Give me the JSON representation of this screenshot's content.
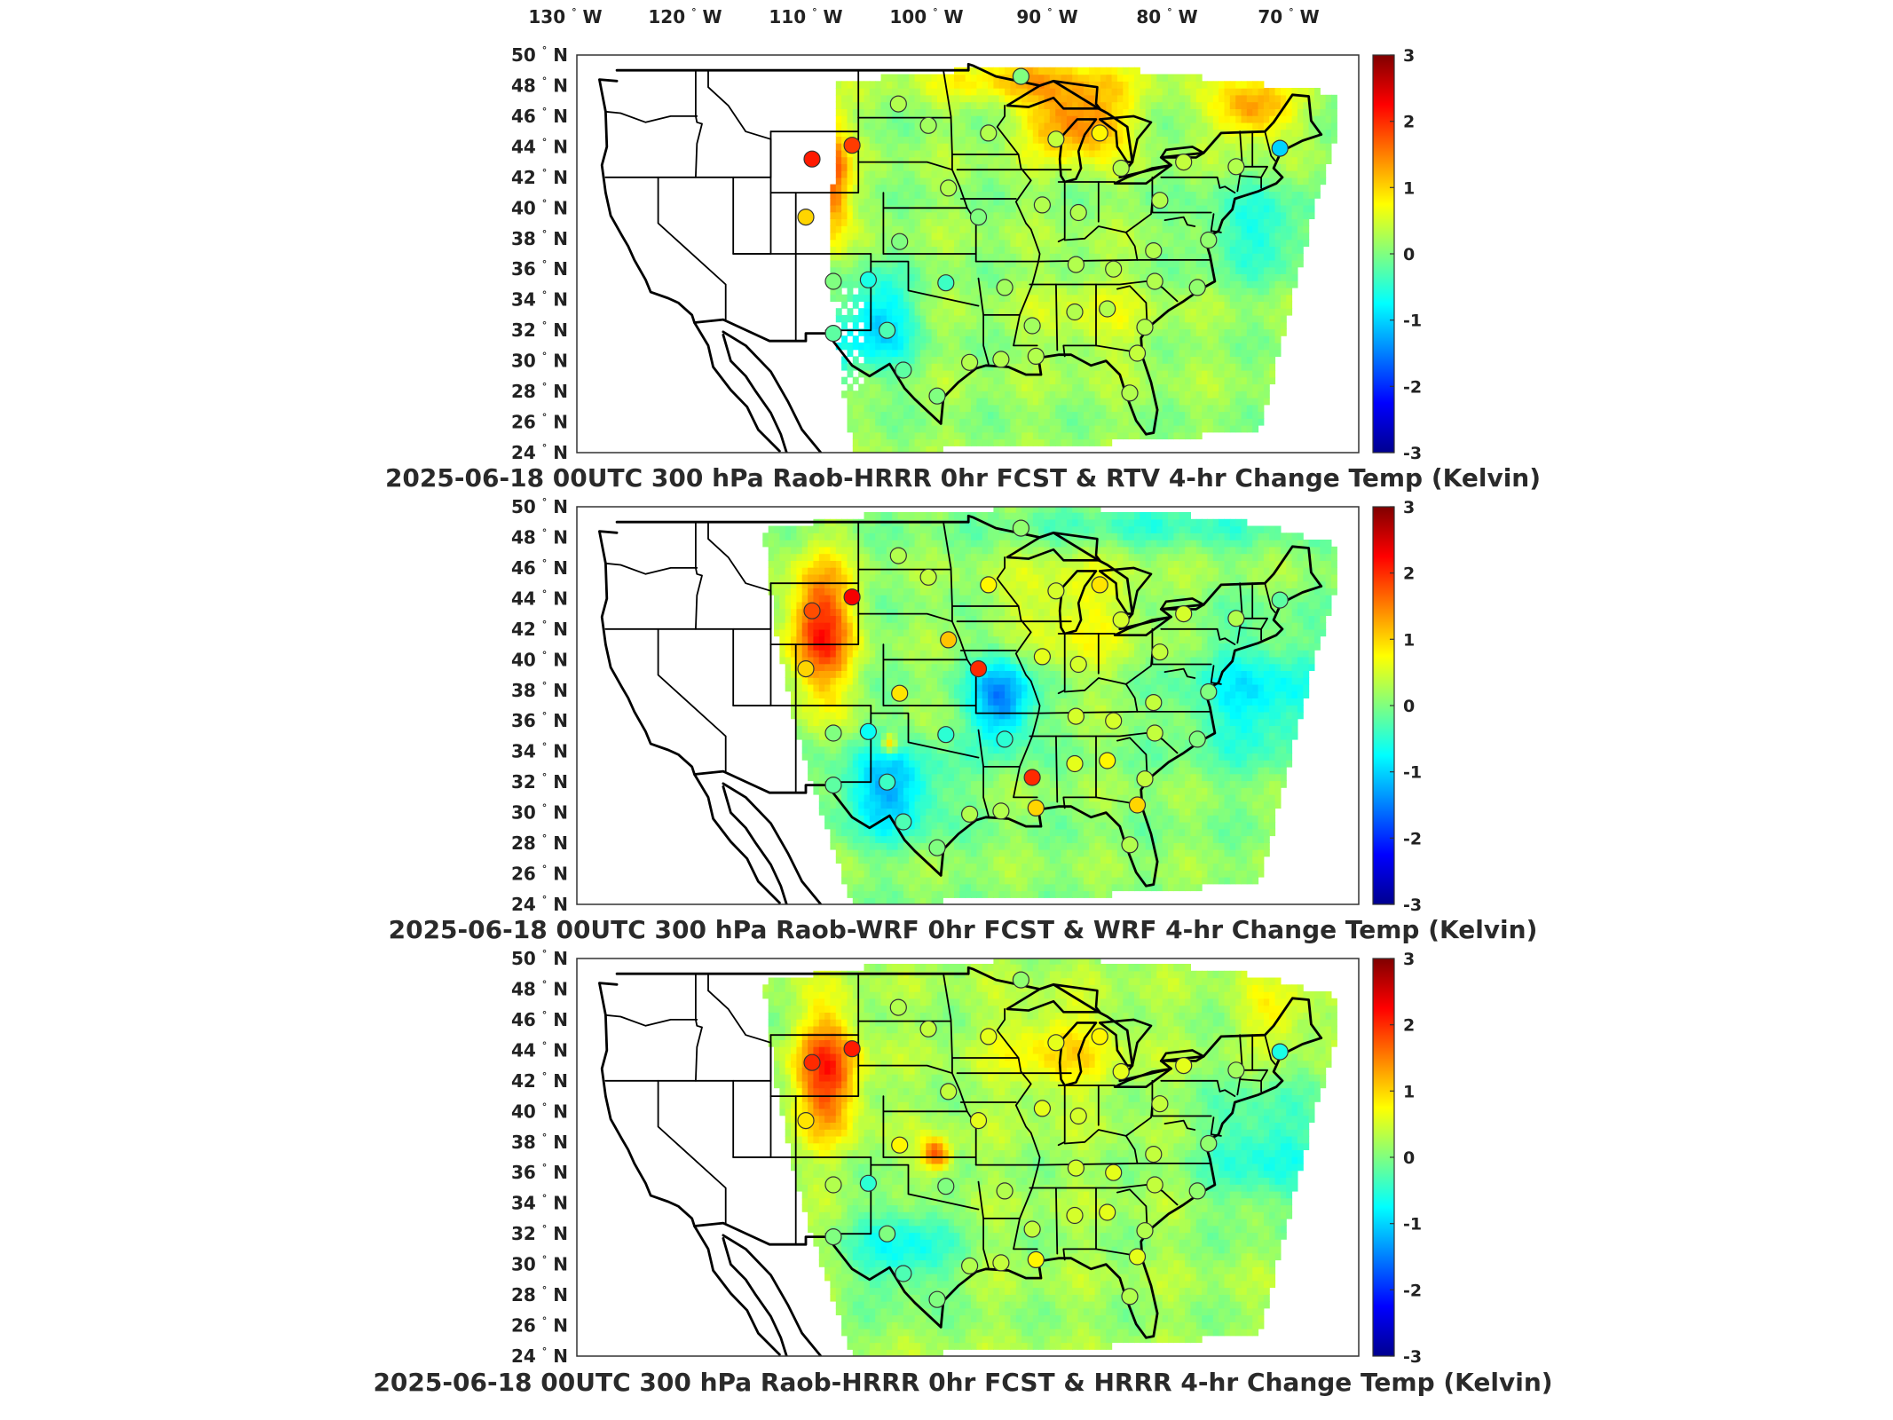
{
  "lon_labels": [
    "130",
    "120",
    "110",
    "100",
    "90",
    "80",
    "70"
  ],
  "lon_suffix": "W",
  "lat_labels": [
    "50",
    "48",
    "46",
    "44",
    "42",
    "40",
    "38",
    "36",
    "34",
    "32",
    "30",
    "28",
    "26",
    "24"
  ],
  "lat_suffix": "N",
  "colorbar": {
    "ticks": [
      "3",
      "2",
      "1",
      "0",
      "-1",
      "-2",
      "-3"
    ],
    "min": -3,
    "max": 3,
    "unit": "Kelvin"
  },
  "panels": [
    {
      "title": "2025-06-18 00UTC 300 hPa Raob-HRRR 0hr FCST & RTV 4-hr Change Temp (Kelvin)",
      "field_pattern": "rtv",
      "stations": [
        {
          "lon": -107.7,
          "lat": 43.2,
          "v": 2.1
        },
        {
          "lon": -104.5,
          "lat": 44.1,
          "v": 1.9
        },
        {
          "lon": -108.2,
          "lat": 39.4,
          "v": 1.0
        },
        {
          "lon": -106.0,
          "lat": 35.2,
          "v": 0.0
        },
        {
          "lon": -103.2,
          "lat": 35.3,
          "v": -0.6
        },
        {
          "lon": -101.7,
          "lat": 32.0,
          "v": -0.3
        },
        {
          "lon": -106.0,
          "lat": 31.8,
          "v": -0.2
        },
        {
          "lon": -97.0,
          "lat": 35.1,
          "v": -0.4
        },
        {
          "lon": -100.7,
          "lat": 37.8,
          "v": 0.0
        },
        {
          "lon": -94.4,
          "lat": 39.4,
          "v": 0.0
        },
        {
          "lon": -96.8,
          "lat": 41.3,
          "v": 0.3
        },
        {
          "lon": -93.6,
          "lat": 44.9,
          "v": 0.3
        },
        {
          "lon": -98.4,
          "lat": 45.4,
          "v": 0.2
        },
        {
          "lon": -100.8,
          "lat": 46.8,
          "v": 0.3
        },
        {
          "lon": -91.0,
          "lat": 48.6,
          "v": 0.0
        },
        {
          "lon": -88.2,
          "lat": 44.5,
          "v": 0.4
        },
        {
          "lon": -84.7,
          "lat": 44.9,
          "v": 0.8
        },
        {
          "lon": -89.3,
          "lat": 40.2,
          "v": 0.3
        },
        {
          "lon": -86.4,
          "lat": 39.7,
          "v": 0.3
        },
        {
          "lon": -83.0,
          "lat": 42.6,
          "v": 0.3
        },
        {
          "lon": -79.9,
          "lat": 40.5,
          "v": 0.3
        },
        {
          "lon": -80.4,
          "lat": 37.2,
          "v": 0.3
        },
        {
          "lon": -83.6,
          "lat": 36.0,
          "v": 0.3
        },
        {
          "lon": -86.6,
          "lat": 36.3,
          "v": 0.3
        },
        {
          "lon": -92.3,
          "lat": 34.8,
          "v": 0.2
        },
        {
          "lon": -90.1,
          "lat": 32.3,
          "v": 0.2
        },
        {
          "lon": -86.7,
          "lat": 33.2,
          "v": 0.3
        },
        {
          "lon": -84.1,
          "lat": 33.4,
          "v": 0.3
        },
        {
          "lon": -81.1,
          "lat": 32.2,
          "v": 0.3
        },
        {
          "lon": -80.3,
          "lat": 35.2,
          "v": 0.3
        },
        {
          "lon": -76.9,
          "lat": 34.8,
          "v": 0.1
        },
        {
          "lon": -76.0,
          "lat": 37.9,
          "v": 0.1
        },
        {
          "lon": -78.0,
          "lat": 43.0,
          "v": 0.4
        },
        {
          "lon": -73.8,
          "lat": 42.7,
          "v": 0.3
        },
        {
          "lon": -70.3,
          "lat": 43.9,
          "v": -1.0
        },
        {
          "lon": -81.7,
          "lat": 30.5,
          "v": 0.4
        },
        {
          "lon": -82.3,
          "lat": 27.9,
          "v": 0.3
        },
        {
          "lon": -89.8,
          "lat": 30.3,
          "v": 0.3
        },
        {
          "lon": -95.1,
          "lat": 29.9,
          "v": 0.3
        },
        {
          "lon": -97.7,
          "lat": 27.7,
          "v": 0.0
        },
        {
          "lon": -100.4,
          "lat": 29.4,
          "v": -0.2
        },
        {
          "lon": -92.6,
          "lat": 30.1,
          "v": 0.3
        }
      ]
    },
    {
      "title": "2025-06-18 00UTC 300 hPa Raob-WRF 0hr FCST & WRF 4-hr Change Temp (Kelvin)",
      "field_pattern": "wrf",
      "stations": [
        {
          "lon": -107.7,
          "lat": 43.2,
          "v": 1.8
        },
        {
          "lon": -104.5,
          "lat": 44.1,
          "v": 2.3
        },
        {
          "lon": -108.2,
          "lat": 39.4,
          "v": 1.0
        },
        {
          "lon": -106.0,
          "lat": 35.2,
          "v": 0.0
        },
        {
          "lon": -103.2,
          "lat": 35.3,
          "v": -0.7
        },
        {
          "lon": -101.7,
          "lat": 32.0,
          "v": -0.4
        },
        {
          "lon": -106.0,
          "lat": 31.8,
          "v": -0.2
        },
        {
          "lon": -97.0,
          "lat": 35.1,
          "v": -0.5
        },
        {
          "lon": -100.7,
          "lat": 37.8,
          "v": 0.9
        },
        {
          "lon": -94.4,
          "lat": 39.4,
          "v": 2.0
        },
        {
          "lon": -96.8,
          "lat": 41.3,
          "v": 1.1
        },
        {
          "lon": -93.6,
          "lat": 44.9,
          "v": 0.8
        },
        {
          "lon": -98.4,
          "lat": 45.4,
          "v": 0.4
        },
        {
          "lon": -100.8,
          "lat": 46.8,
          "v": 0.3
        },
        {
          "lon": -91.0,
          "lat": 48.6,
          "v": 0.1
        },
        {
          "lon": -88.2,
          "lat": 44.5,
          "v": 0.5
        },
        {
          "lon": -84.7,
          "lat": 44.9,
          "v": 0.9
        },
        {
          "lon": -89.3,
          "lat": 40.2,
          "v": 0.6
        },
        {
          "lon": -86.4,
          "lat": 39.7,
          "v": 0.5
        },
        {
          "lon": -83.0,
          "lat": 42.6,
          "v": 0.5
        },
        {
          "lon": -79.9,
          "lat": 40.5,
          "v": 0.4
        },
        {
          "lon": -80.4,
          "lat": 37.2,
          "v": 0.4
        },
        {
          "lon": -83.6,
          "lat": 36.0,
          "v": 0.5
        },
        {
          "lon": -86.6,
          "lat": 36.3,
          "v": 0.5
        },
        {
          "lon": -92.3,
          "lat": 34.8,
          "v": -0.5
        },
        {
          "lon": -90.1,
          "lat": 32.3,
          "v": 2.0
        },
        {
          "lon": -86.7,
          "lat": 33.2,
          "v": 0.6
        },
        {
          "lon": -84.1,
          "lat": 33.4,
          "v": 0.8
        },
        {
          "lon": -81.1,
          "lat": 32.2,
          "v": 0.4
        },
        {
          "lon": -80.3,
          "lat": 35.2,
          "v": 0.4
        },
        {
          "lon": -76.9,
          "lat": 34.8,
          "v": 0.0
        },
        {
          "lon": -76.0,
          "lat": 37.9,
          "v": 0.0
        },
        {
          "lon": -78.0,
          "lat": 43.0,
          "v": 0.5
        },
        {
          "lon": -73.8,
          "lat": 42.7,
          "v": 0.3
        },
        {
          "lon": -70.3,
          "lat": 43.9,
          "v": -0.2
        },
        {
          "lon": -81.7,
          "lat": 30.5,
          "v": 1.0
        },
        {
          "lon": -82.3,
          "lat": 27.9,
          "v": 0.3
        },
        {
          "lon": -89.8,
          "lat": 30.3,
          "v": 1.0
        },
        {
          "lon": -95.1,
          "lat": 29.9,
          "v": 0.3
        },
        {
          "lon": -97.7,
          "lat": 27.7,
          "v": 0.0
        },
        {
          "lon": -100.4,
          "lat": 29.4,
          "v": -0.3
        },
        {
          "lon": -92.6,
          "lat": 30.1,
          "v": 0.3
        }
      ]
    },
    {
      "title": "2025-06-18 00UTC 300 hPa Raob-HRRR 0hr FCST & HRRR 4-hr Change Temp (Kelvin)",
      "field_pattern": "hrrr",
      "stations": [
        {
          "lon": -107.7,
          "lat": 43.2,
          "v": 2.0
        },
        {
          "lon": -104.5,
          "lat": 44.1,
          "v": 2.1
        },
        {
          "lon": -108.2,
          "lat": 39.4,
          "v": 0.9
        },
        {
          "lon": -106.0,
          "lat": 35.2,
          "v": 0.3
        },
        {
          "lon": -103.2,
          "lat": 35.3,
          "v": -0.5
        },
        {
          "lon": -101.7,
          "lat": 32.0,
          "v": 0.0
        },
        {
          "lon": -106.0,
          "lat": 31.8,
          "v": 0.0
        },
        {
          "lon": -97.0,
          "lat": 35.1,
          "v": 0.0
        },
        {
          "lon": -100.7,
          "lat": 37.8,
          "v": 0.8
        },
        {
          "lon": -94.4,
          "lat": 39.4,
          "v": 0.6
        },
        {
          "lon": -96.8,
          "lat": 41.3,
          "v": 0.4
        },
        {
          "lon": -93.6,
          "lat": 44.9,
          "v": 0.6
        },
        {
          "lon": -98.4,
          "lat": 45.4,
          "v": 0.4
        },
        {
          "lon": -100.8,
          "lat": 46.8,
          "v": 0.3
        },
        {
          "lon": -91.0,
          "lat": 48.6,
          "v": 0.1
        },
        {
          "lon": -88.2,
          "lat": 44.5,
          "v": 0.6
        },
        {
          "lon": -84.7,
          "lat": 44.9,
          "v": 0.8
        },
        {
          "lon": -89.3,
          "lat": 40.2,
          "v": 0.6
        },
        {
          "lon": -86.4,
          "lat": 39.7,
          "v": 0.5
        },
        {
          "lon": -83.0,
          "lat": 42.6,
          "v": 0.6
        },
        {
          "lon": -79.9,
          "lat": 40.5,
          "v": 0.4
        },
        {
          "lon": -80.4,
          "lat": 37.2,
          "v": 0.4
        },
        {
          "lon": -83.6,
          "lat": 36.0,
          "v": 0.6
        },
        {
          "lon": -86.6,
          "lat": 36.3,
          "v": 0.5
        },
        {
          "lon": -92.3,
          "lat": 34.8,
          "v": 0.3
        },
        {
          "lon": -90.1,
          "lat": 32.3,
          "v": 0.4
        },
        {
          "lon": -86.7,
          "lat": 33.2,
          "v": 0.5
        },
        {
          "lon": -84.1,
          "lat": 33.4,
          "v": 0.6
        },
        {
          "lon": -81.1,
          "lat": 32.2,
          "v": 0.3
        },
        {
          "lon": -80.3,
          "lat": 35.2,
          "v": 0.4
        },
        {
          "lon": -76.9,
          "lat": 34.8,
          "v": 0.1
        },
        {
          "lon": -76.0,
          "lat": 37.9,
          "v": 0.1
        },
        {
          "lon": -78.0,
          "lat": 43.0,
          "v": 0.6
        },
        {
          "lon": -73.8,
          "lat": 42.7,
          "v": 0.2
        },
        {
          "lon": -70.3,
          "lat": 43.9,
          "v": -0.6
        },
        {
          "lon": -81.7,
          "lat": 30.5,
          "v": 0.6
        },
        {
          "lon": -82.3,
          "lat": 27.9,
          "v": 0.3
        },
        {
          "lon": -89.8,
          "lat": 30.3,
          "v": 0.8
        },
        {
          "lon": -95.1,
          "lat": 29.9,
          "v": 0.3
        },
        {
          "lon": -97.7,
          "lat": 27.7,
          "v": 0.0
        },
        {
          "lon": -100.4,
          "lat": 29.4,
          "v": -0.3
        },
        {
          "lon": -92.6,
          "lat": 30.1,
          "v": 0.4
        }
      ]
    }
  ]
}
